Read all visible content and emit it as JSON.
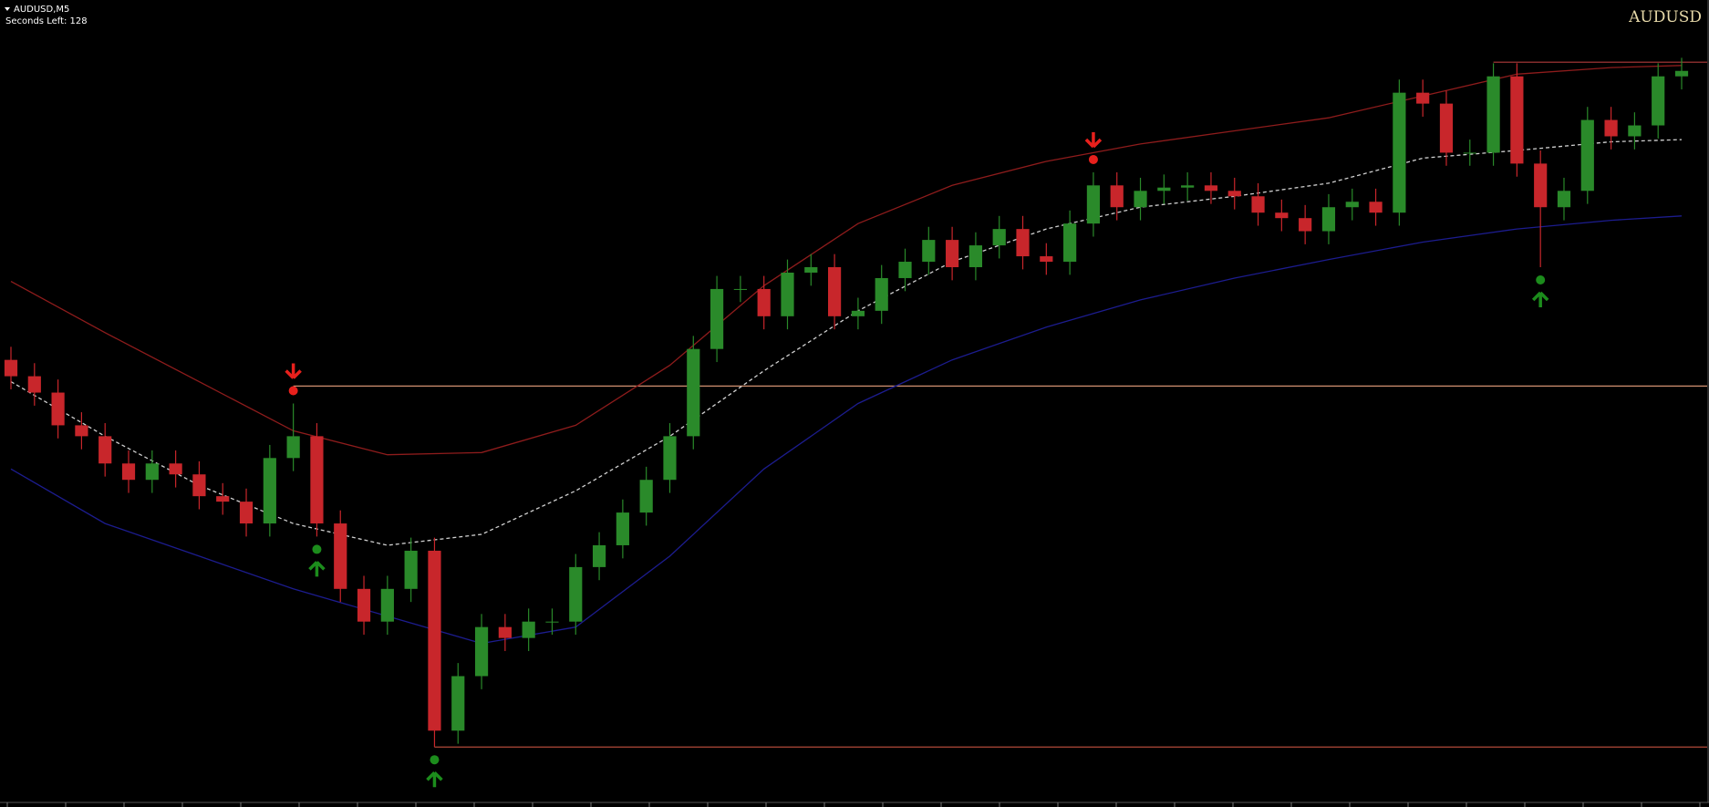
{
  "chart_data": {
    "type": "candlestick",
    "title": "AUDUSD,M5",
    "subtitle": "Seconds Left: 128",
    "annotation": "AUDUSD",
    "ylim": [
      0,
      740
    ],
    "open": [
      410,
      395,
      380,
      350,
      340,
      315,
      300,
      315,
      305,
      285,
      280,
      260,
      320,
      340,
      260,
      200,
      170,
      200,
      235,
      70,
      120,
      165,
      155,
      170,
      170,
      220,
      240,
      270,
      300,
      340,
      420,
      475,
      475,
      450,
      490,
      495,
      450,
      455,
      485,
      500,
      520,
      495,
      515,
      530,
      505,
      500,
      535,
      570,
      550,
      565,
      568,
      570,
      565,
      560,
      545,
      540,
      528,
      550,
      555,
      545,
      655,
      645,
      600,
      600,
      670,
      590,
      550,
      565,
      630,
      615,
      625,
      670
    ],
    "high": [
      422,
      407,
      392,
      362,
      352,
      327,
      327,
      327,
      317,
      297,
      292,
      332,
      370,
      352,
      272,
      212,
      212,
      247,
      247,
      132,
      177,
      177,
      182,
      182,
      232,
      252,
      282,
      312,
      352,
      432,
      487,
      487,
      487,
      502,
      507,
      507,
      467,
      497,
      512,
      532,
      532,
      527,
      542,
      542,
      517,
      547,
      582,
      582,
      577,
      580,
      582,
      582,
      577,
      572,
      557,
      552,
      562,
      567,
      567,
      667,
      667,
      657,
      612,
      682,
      682,
      602,
      577,
      642,
      642,
      637,
      682,
      687
    ],
    "low": [
      383,
      368,
      338,
      328,
      303,
      288,
      288,
      293,
      273,
      268,
      248,
      248,
      308,
      248,
      188,
      158,
      158,
      188,
      55,
      58,
      108,
      143,
      143,
      158,
      158,
      208,
      228,
      258,
      288,
      328,
      408,
      463,
      438,
      438,
      478,
      438,
      438,
      443,
      473,
      488,
      483,
      483,
      503,
      493,
      488,
      488,
      523,
      538,
      538,
      553,
      556,
      553,
      548,
      533,
      528,
      516,
      516,
      538,
      533,
      533,
      633,
      588,
      588,
      588,
      578,
      495,
      538,
      553,
      603,
      603,
      613,
      658
    ],
    "close": [
      395,
      380,
      350,
      340,
      315,
      300,
      315,
      305,
      285,
      280,
      260,
      320,
      340,
      260,
      200,
      170,
      200,
      235,
      70,
      120,
      165,
      155,
      170,
      170,
      220,
      240,
      270,
      300,
      340,
      420,
      475,
      475,
      450,
      490,
      495,
      450,
      455,
      485,
      500,
      520,
      495,
      515,
      530,
      505,
      500,
      535,
      570,
      550,
      565,
      568,
      570,
      565,
      560,
      545,
      540,
      528,
      550,
      555,
      545,
      655,
      645,
      600,
      600,
      670,
      590,
      550,
      565,
      630,
      615,
      625,
      670,
      675
    ],
    "bull_color": "#2a8a2a",
    "bear_color": "#c8262b",
    "band_x": [
      0,
      4,
      8,
      12,
      16,
      20,
      24,
      28,
      32,
      36,
      40,
      44,
      48,
      52,
      56,
      60,
      64,
      68,
      71
    ],
    "bands": {
      "upper": {
        "color": "#8e1c1c",
        "dashed": false,
        "values": [
          482,
          435,
          390,
          345,
          323,
          325,
          350,
          405,
          478,
          535,
          570,
          592,
          608,
          620,
          632,
          652,
          672,
          678,
          680
        ]
      },
      "middle": {
        "color": "#d0d0d0",
        "dashed": true,
        "values": [
          390,
          340,
          295,
          260,
          240,
          250,
          290,
          340,
          400,
          455,
          500,
          530,
          550,
          560,
          572,
          595,
          602,
          610,
          612
        ]
      },
      "lower": {
        "color": "#1c1c8e",
        "dashed": false,
        "values": [
          310,
          260,
          230,
          200,
          175,
          150,
          165,
          230,
          310,
          370,
          410,
          440,
          465,
          485,
          502,
          518,
          530,
          538,
          542
        ]
      }
    },
    "levels": [
      {
        "value": 386,
        "from": 12,
        "color": "#d09070"
      },
      {
        "value": 55,
        "from": 18,
        "color": "#b04a3a"
      },
      {
        "value": 683,
        "from": 63,
        "color": "#b03a3a"
      }
    ],
    "sell_signals": [
      12,
      46
    ],
    "sell_color": "#e8201c",
    "buy_signals": [
      13,
      18,
      65
    ],
    "buy_color": "#1c8c1c"
  }
}
